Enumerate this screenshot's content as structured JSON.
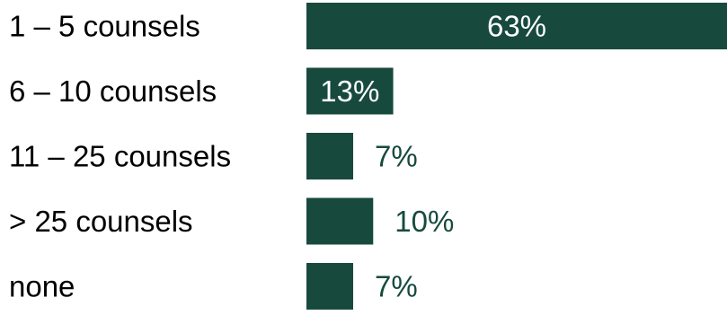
{
  "chart_data": {
    "type": "bar",
    "orientation": "horizontal",
    "categories": [
      "1 – 5 counsels",
      "6 – 10 counsels",
      "11 – 25 counsels",
      "> 25 counsels",
      "none"
    ],
    "values": [
      63,
      13,
      7,
      10,
      7
    ],
    "value_labels": [
      "63%",
      "13%",
      "7%",
      "10%",
      "7%"
    ],
    "unit": "%",
    "xlim": [
      0,
      63
    ],
    "grid": false,
    "legend": "none",
    "colors": {
      "bar": "#174a3d",
      "label_inside": "#ffffff",
      "label_outside": "#174a3d",
      "category_text": "#000000"
    }
  }
}
